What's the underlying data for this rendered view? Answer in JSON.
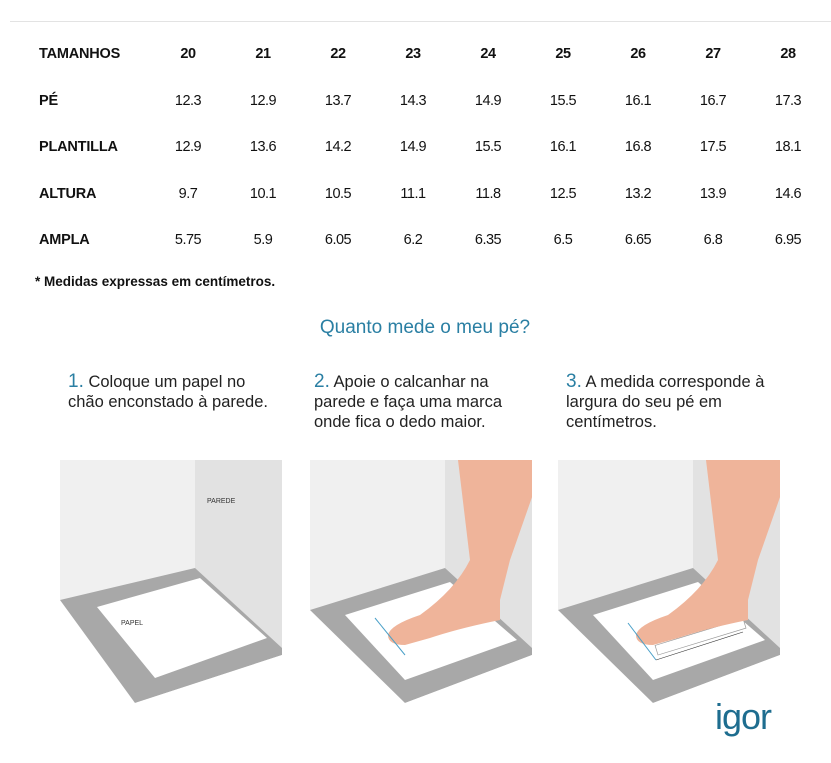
{
  "table": {
    "header_label": "TAMANHOS",
    "sizes": [
      "20",
      "21",
      "22",
      "23",
      "24",
      "25",
      "26",
      "27",
      "28"
    ],
    "rows": [
      {
        "label": "PÉ",
        "values": [
          "12.3",
          "12.9",
          "13.7",
          "14.3",
          "14.9",
          "15.5",
          "16.1",
          "16.7",
          "17.3"
        ]
      },
      {
        "label": "PLANTILLA",
        "values": [
          "12.9",
          "13.6",
          "14.2",
          "14.9",
          "15.5",
          "16.1",
          "16.8",
          "17.5",
          "18.1"
        ]
      },
      {
        "label": "ALTURA",
        "values": [
          "9.7",
          "10.1",
          "10.5",
          "11.1",
          "11.8",
          "12.5",
          "13.2",
          "13.9",
          "14.6"
        ]
      },
      {
        "label": "AMPLA",
        "values": [
          "5.75",
          "5.9",
          "6.05",
          "6.2",
          "6.35",
          "6.5",
          "6.65",
          "6.8",
          "6.95"
        ]
      }
    ]
  },
  "note": "* Medidas expressas em centímetros.",
  "guide": {
    "title": "Quanto mede o meu pé?",
    "steps": [
      {
        "num": "1.",
        "text": "Coloque um papel no chão enconstado à parede."
      },
      {
        "num": "2.",
        "text": "Apoie o calcanhar na parede e faça uma marca onde fica o dedo maior."
      },
      {
        "num": "3.",
        "text": "A medida corresponde à largura do seu pé em centímetros."
      }
    ],
    "panel_labels": {
      "wall": "PAREDE",
      "paper": "PAPEL"
    }
  },
  "logo": "igor",
  "colors": {
    "accent": "#2a7fa3",
    "skin": "#efb49a",
    "floor": "#a8a8a8",
    "wall": "#f0f0f0",
    "side_wall": "#e2e2e2"
  }
}
